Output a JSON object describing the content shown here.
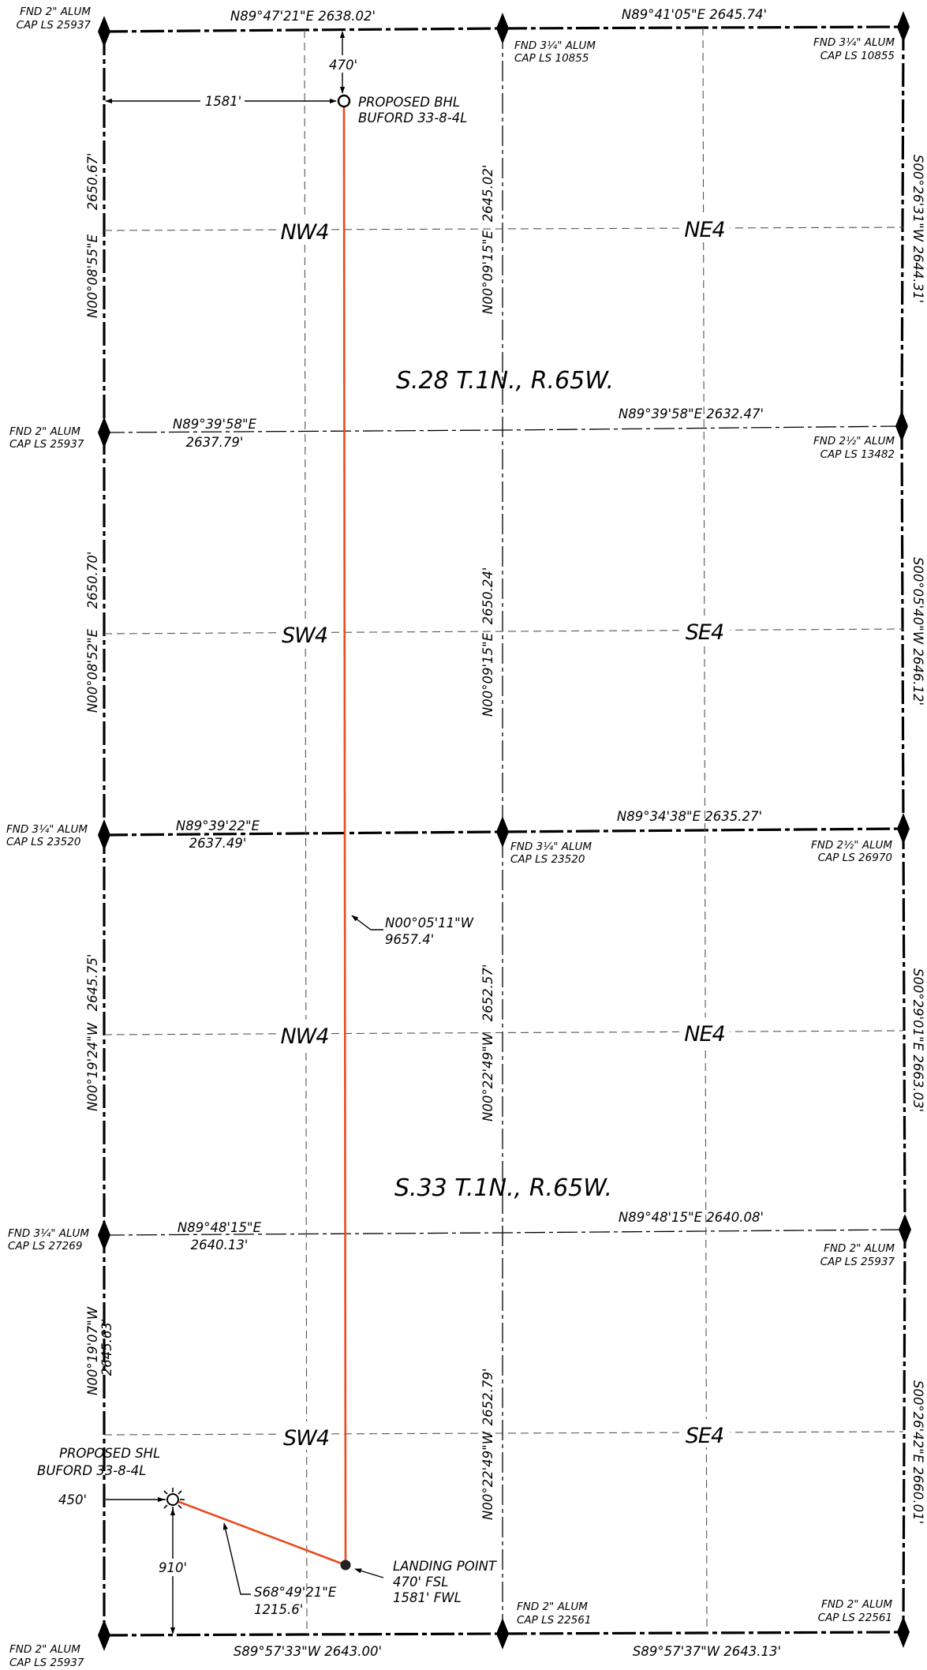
{
  "monuments": {
    "nw_top": {
      "line1": "FND 2\" ALUM",
      "line2": "CAP LS 25937"
    },
    "n_mid_top": {
      "line1": "FND 3¼\" ALUM",
      "line2": "CAP LS 10855"
    },
    "ne_top": {
      "line1": "FND 3¼\" ALUM",
      "line2": "CAP LS 10855"
    },
    "w_s28": {
      "line1": "FND 2\" ALUM",
      "line2": "CAP LS 25937"
    },
    "e_s28": {
      "line1": "FND 2½\" ALUM",
      "line2": "CAP LS 13482"
    },
    "w_mid": {
      "line1": "FND 3¼\" ALUM",
      "line2": "CAP LS 23520"
    },
    "c_mid": {
      "line1": "FND 3¼\" ALUM",
      "line2": "CAP LS 23520"
    },
    "e_mid": {
      "line1": "FND 2½\" ALUM",
      "line2": "CAP LS 26970"
    },
    "w_s33": {
      "line1": "FND 3¼\" ALUM",
      "line2": "CAP LS 27269"
    },
    "e_s33": {
      "line1": "FND 2\" ALUM",
      "line2": "CAP LS 25937"
    },
    "sw_bot": {
      "line1": "FND 2\" ALUM",
      "line2": "CAP LS 25937"
    },
    "s_mid_bot": {
      "line1": "FND 2\" ALUM",
      "line2": "CAP LS 22561"
    },
    "se_bot": {
      "line1": "FND 2\" ALUM",
      "line2": "CAP LS 22561"
    }
  },
  "bearings": {
    "n_top_w": "N89°47'21\"E   2638.02'",
    "n_top_e": "N89°41'05\"E   2645.74'",
    "s28_w_brg": "N00°08'55\"E",
    "s28_w_dist": "2650.67'",
    "s28_c_brg": "N00°09'15\"E",
    "s28_c_dist": "2645.02'",
    "s28_e": "S00°26'31\"W   2644.31'",
    "s28_qw_brg": "N89°39'58\"E",
    "s28_qw_dist": "2637.79'",
    "s28_qe": "N89°39'58\"E   2632.47'",
    "s28_sw_brg": "N00°08'52\"E",
    "s28_sw_dist": "2650.70'",
    "s28_sc_brg": "N00°09'15\"E",
    "s28_sc_dist": "2650.24'",
    "s28_se": "S00°05'40\"W   2646.12'",
    "mid_w_brg": "N89°39'22\"E",
    "mid_w_dist": "2637.49'",
    "mid_e": "N89°34'38\"E   2635.27'",
    "s33_nw_brg": "N00°19'24\"W",
    "s33_nw_dist": "2645.75'",
    "s33_nc_brg": "N00°22'49\"W",
    "s33_nc_dist": "2652.57'",
    "s33_ne": "S00°29'01\"E   2663.03'",
    "s33_qw_brg": "N89°48'15\"E",
    "s33_qw_dist": "2640.13'",
    "s33_qe": "N89°48'15\"E   2640.08'",
    "s33_sw_brg": "N00°19'07\"W",
    "s33_sw_dist": "2645.63'",
    "s33_sc_brg": "N00°22'49\"W",
    "s33_sc_dist": "2652.79'",
    "s33_se": "S00°26'42\"E   2660.01'",
    "s_bot_w": "S89°57'33\"W   2643.00'",
    "s_bot_e": "S89°57'37\"W   2643.13'"
  },
  "quarters": {
    "s28_nw": "NW4",
    "s28_ne": "NE4",
    "s28_sw": "SW4",
    "s28_se": "SE4",
    "s33_nw": "NW4",
    "s33_ne": "NE4",
    "s33_sw": "SW4",
    "s33_se": "SE4"
  },
  "sections": {
    "s28": "S.28  T.1N.,  R.65W.",
    "s33": "S.33  T.1N.,  R.65W."
  },
  "wellbore": {
    "bhl_line1": "PROPOSED BHL",
    "bhl_line2": "BUFORD 33-8-4L",
    "bhl_fnl": "470'",
    "bhl_fwl": "1581'",
    "lateral_brg": "N00°05'11\"W",
    "lateral_len": "9657.4'",
    "shl_line1": "PROPOSED SHL",
    "shl_line2": "BUFORD 33-8-4L",
    "shl_fwl": "450'",
    "shl_fsl": "910'",
    "build_brg": "S68°49'21\"E",
    "build_len": "1215.6'",
    "lp_line1": "LANDING POINT",
    "lp_line2": "470' FSL",
    "lp_line3": "1581' FWL",
    "well_color": "#ea4a1c"
  }
}
